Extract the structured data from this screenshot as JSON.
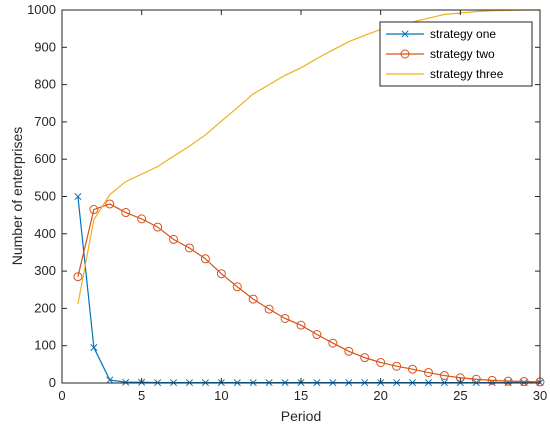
{
  "chart_data": {
    "type": "line",
    "xlabel": "Period",
    "ylabel": "Number of enterprises",
    "xlim": [
      0,
      30
    ],
    "ylim": [
      0,
      1000
    ],
    "xticks": [
      0,
      5,
      10,
      15,
      20,
      25,
      30
    ],
    "yticks": [
      0,
      100,
      200,
      300,
      400,
      500,
      600,
      700,
      800,
      900,
      1000
    ],
    "grid": false,
    "legend_position": "top-right",
    "x": [
      1,
      2,
      3,
      4,
      5,
      6,
      7,
      8,
      9,
      10,
      11,
      12,
      13,
      14,
      15,
      16,
      17,
      18,
      19,
      20,
      21,
      22,
      23,
      24,
      25,
      26,
      27,
      28,
      29,
      30
    ],
    "series": [
      {
        "name": "strategy one",
        "color": "#0072BD",
        "marker": "x",
        "values": [
          500,
          95,
          8,
          2,
          2,
          1,
          1,
          1,
          1,
          1,
          1,
          1,
          1,
          1,
          1,
          1,
          1,
          1,
          1,
          1,
          1,
          1,
          1,
          1,
          1,
          1,
          1,
          1,
          1,
          1
        ]
      },
      {
        "name": "strategy two",
        "color": "#D95319",
        "marker": "o",
        "values": [
          285,
          465,
          480,
          457,
          440,
          418,
          385,
          362,
          333,
          293,
          258,
          225,
          198,
          173,
          155,
          130,
          107,
          85,
          68,
          55,
          45,
          37,
          28,
          20,
          14,
          10,
          7,
          5,
          4,
          3
        ]
      },
      {
        "name": "strategy three",
        "color": "#EDB120",
        "marker": "none",
        "values": [
          212,
          438,
          505,
          540,
          560,
          580,
          608,
          635,
          665,
          702,
          738,
          775,
          800,
          825,
          845,
          870,
          893,
          915,
          932,
          948,
          958,
          968,
          978,
          988,
          992,
          996,
          998,
          999,
          1000,
          1000
        ]
      }
    ]
  }
}
